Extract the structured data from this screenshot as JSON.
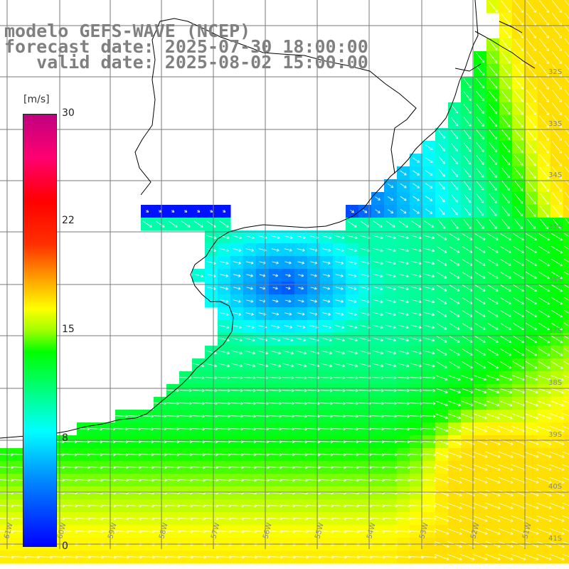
{
  "title": {
    "line1": "modelo GEFS-WAVE (NCEP)",
    "line2": "forecast date: 2025-07-30 18:00:00",
    "line3": "   valid date: 2025-08-02 15:00:00"
  },
  "colorbar": {
    "unit": "[m/s]",
    "ticks": [
      "30",
      "22",
      "15",
      "8",
      "0"
    ]
  },
  "lon_labels": [
    "61W",
    "60W",
    "59W",
    "58W",
    "57W",
    "56W",
    "55W",
    "54W",
    "53W",
    "52W",
    "51W"
  ],
  "lat_labels": [
    "32S",
    "33S",
    "34S",
    "35S",
    "36S",
    "37S",
    "38S",
    "39S",
    "40S",
    "41S"
  ],
  "colors": {
    "grid": "#7a7a7a",
    "coast": "#000000",
    "arrow": "#ffffff",
    "title": "#808080"
  }
}
